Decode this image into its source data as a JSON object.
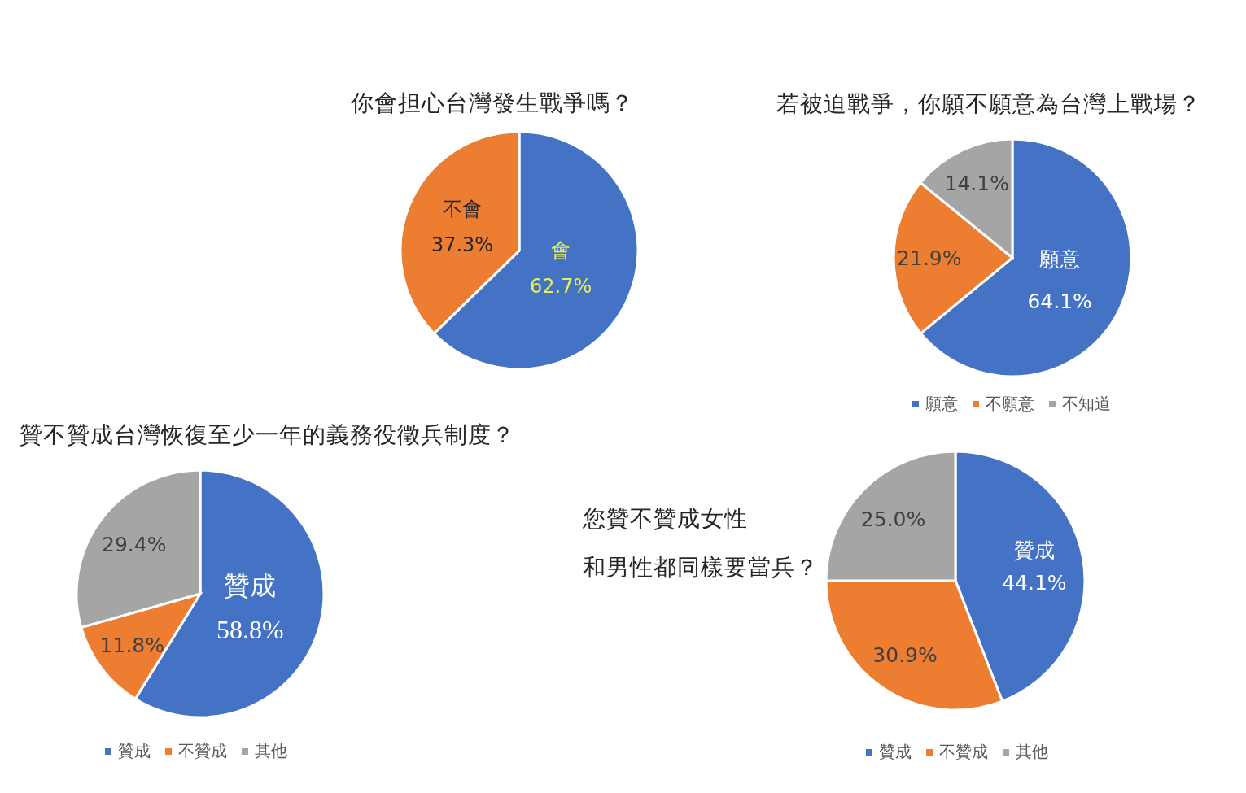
{
  "chart_data": [
    {
      "type": "pie",
      "title": "你會担心台灣發生戰爭嗎？",
      "categories": [
        "會",
        "不會"
      ],
      "values": [
        62.7,
        37.3
      ],
      "colors": [
        "#4472c4",
        "#ed7d31"
      ],
      "value_labels": [
        "62.7%",
        "37.3%"
      ]
    },
    {
      "type": "pie",
      "title": "若被迫戰爭，你願不願意為台灣上戰場？",
      "categories": [
        "願意",
        "不願意",
        "不知道"
      ],
      "values": [
        64.1,
        21.9,
        14.1
      ],
      "colors": [
        "#4472c4",
        "#ed7d31",
        "#a5a5a5"
      ],
      "value_labels": [
        "願意\n64.1%",
        "21.9%",
        "14.1%"
      ],
      "legend": "bottom"
    },
    {
      "type": "pie",
      "title": "贊不贊成台灣恢復至少一年的義務役徵兵制度？",
      "categories": [
        "贊成",
        "不贊成",
        "其他"
      ],
      "values": [
        58.8,
        11.8,
        29.4
      ],
      "colors": [
        "#4472c4",
        "#ed7d31",
        "#a5a5a5"
      ],
      "value_labels": [
        "贊成\n58.8%",
        "11.8%",
        "29.4%"
      ],
      "legend": "bottom"
    },
    {
      "type": "pie",
      "title": "您贊不贊成女性",
      "subtitle": "和男性都同樣要當兵？",
      "categories": [
        "贊成",
        "不贊成",
        "其他"
      ],
      "values": [
        44.1,
        30.9,
        25.0
      ],
      "colors": [
        "#4472c4",
        "#ed7d31",
        "#a5a5a5"
      ],
      "value_labels": [
        "贊成\n44.1%",
        "30.9%",
        "25.0%"
      ],
      "legend": "bottom"
    }
  ]
}
